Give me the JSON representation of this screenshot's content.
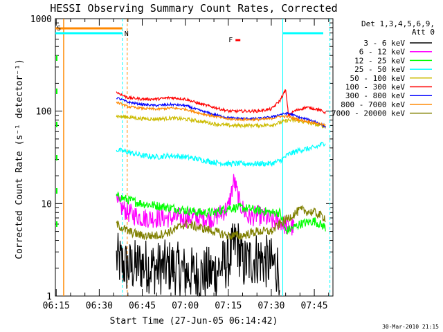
{
  "chart_data": {
    "type": "line",
    "title": "HESSI Observing Summary Count Rates, Corrected",
    "xlabel": "Start Time (27-Jun-05 06:14:42)",
    "ylabel": "Corrected Count Rate (s⁻¹ detector⁻¹)",
    "xlim": [
      "06:14:42",
      "07:51:30"
    ],
    "ylim": [
      1,
      1000
    ],
    "yscale": "log",
    "x_ticks": [
      "06:15",
      "06:30",
      "06:45",
      "07:00",
      "07:15",
      "07:30",
      "07:45"
    ],
    "y_ticks": [
      "1",
      "10",
      "100",
      "1000"
    ],
    "legend_header": [
      "Det 1,3,4,5,6,9,",
      "Att 0"
    ],
    "legend_placement": "right",
    "series": [
      {
        "name": "3 - 6 keV",
        "color": "#000000",
        "points": [
          [
            "06:36",
            2.5
          ],
          [
            "06:40",
            2.0
          ],
          [
            "06:45",
            2.2
          ],
          [
            "06:50",
            2.0
          ],
          [
            "06:55",
            2.1
          ],
          [
            "07:00",
            1.8
          ],
          [
            "07:05",
            1.7
          ],
          [
            "07:10",
            1.8
          ],
          [
            "07:15",
            2.4
          ],
          [
            "07:18",
            4.0
          ],
          [
            "07:20",
            2.2
          ],
          [
            "07:25",
            2.6
          ],
          [
            "07:30",
            2.2
          ],
          [
            "07:33",
            2.0
          ]
        ]
      },
      {
        "name": "6 - 12 keV",
        "color": "#ff00ff",
        "points": [
          [
            "06:36",
            10
          ],
          [
            "06:40",
            8
          ],
          [
            "06:45",
            7
          ],
          [
            "06:50",
            7
          ],
          [
            "06:55",
            7
          ],
          [
            "07:00",
            7
          ],
          [
            "07:05",
            7
          ],
          [
            "07:10",
            7
          ],
          [
            "07:15",
            9
          ],
          [
            "07:17",
            18
          ],
          [
            "07:19",
            10
          ],
          [
            "07:22",
            7
          ],
          [
            "07:25",
            7.5
          ],
          [
            "07:28",
            7
          ],
          [
            "07:30",
            6.5
          ],
          [
            "07:33",
            6.5
          ],
          [
            "07:36",
            5.5
          ],
          [
            "07:38",
            5.5
          ]
        ]
      },
      {
        "name": "12 - 25 keV",
        "color": "#00ff00",
        "points": [
          [
            "06:36",
            12
          ],
          [
            "06:40",
            11
          ],
          [
            "06:45",
            10
          ],
          [
            "06:50",
            9.5
          ],
          [
            "06:55",
            9
          ],
          [
            "07:00",
            8.5
          ],
          [
            "07:05",
            8
          ],
          [
            "07:10",
            8
          ],
          [
            "07:15",
            9
          ],
          [
            "07:20",
            9
          ],
          [
            "07:25",
            8.5
          ],
          [
            "07:30",
            8
          ],
          [
            "07:33",
            8
          ],
          [
            "07:35",
            5
          ],
          [
            "07:40",
            6
          ],
          [
            "07:45",
            6.5
          ],
          [
            "07:49",
            5.5
          ]
        ]
      },
      {
        "name": "25 - 50 keV",
        "color": "#00ffff",
        "points": [
          [
            "06:36",
            38
          ],
          [
            "06:40",
            36
          ],
          [
            "06:45",
            33
          ],
          [
            "06:50",
            32
          ],
          [
            "06:55",
            33
          ],
          [
            "07:00",
            32
          ],
          [
            "07:05",
            30
          ],
          [
            "07:10",
            28
          ],
          [
            "07:15",
            27
          ],
          [
            "07:20",
            27
          ],
          [
            "07:25",
            27
          ],
          [
            "07:30",
            27
          ],
          [
            "07:33",
            29
          ],
          [
            "07:36",
            34
          ],
          [
            "07:40",
            38
          ],
          [
            "07:45",
            40
          ],
          [
            "07:49",
            46
          ]
        ]
      },
      {
        "name": "50 - 100 keV",
        "color": "#ccbb00",
        "points": [
          [
            "06:36",
            88
          ],
          [
            "06:40",
            86
          ],
          [
            "06:45",
            83
          ],
          [
            "06:50",
            82
          ],
          [
            "06:55",
            84
          ],
          [
            "07:00",
            82
          ],
          [
            "07:05",
            78
          ],
          [
            "07:10",
            73
          ],
          [
            "07:15",
            70
          ],
          [
            "07:20",
            70
          ],
          [
            "07:25",
            70
          ],
          [
            "07:30",
            71
          ],
          [
            "07:33",
            75
          ],
          [
            "07:36",
            80
          ],
          [
            "07:40",
            78
          ],
          [
            "07:45",
            72
          ],
          [
            "07:49",
            68
          ]
        ]
      },
      {
        "name": "100 - 300 keV",
        "color": "#ff0000",
        "points": [
          [
            "06:36",
            160
          ],
          [
            "06:40",
            140
          ],
          [
            "06:45",
            135
          ],
          [
            "06:50",
            135
          ],
          [
            "06:55",
            140
          ],
          [
            "07:00",
            135
          ],
          [
            "07:05",
            120
          ],
          [
            "07:10",
            110
          ],
          [
            "07:15",
            100
          ],
          [
            "07:20",
            100
          ],
          [
            "07:25",
            100
          ],
          [
            "07:30",
            105
          ],
          [
            "07:33",
            130
          ],
          [
            "07:35",
            170
          ],
          [
            "07:36",
            90
          ],
          [
            "07:38",
            100
          ],
          [
            "07:42",
            110
          ],
          [
            "07:46",
            105
          ],
          [
            "07:49",
            96
          ]
        ]
      },
      {
        "name": "300 - 800 keV",
        "color": "#0000ff",
        "points": [
          [
            "06:36",
            140
          ],
          [
            "06:40",
            125
          ],
          [
            "06:45",
            118
          ],
          [
            "06:50",
            115
          ],
          [
            "06:55",
            118
          ],
          [
            "07:00",
            115
          ],
          [
            "07:05",
            102
          ],
          [
            "07:10",
            92
          ],
          [
            "07:15",
            85
          ],
          [
            "07:20",
            83
          ],
          [
            "07:25",
            83
          ],
          [
            "07:30",
            86
          ],
          [
            "07:33",
            92
          ],
          [
            "07:36",
            95
          ],
          [
            "07:40",
            85
          ],
          [
            "07:45",
            78
          ],
          [
            "07:49",
            68
          ]
        ]
      },
      {
        "name": "800 - 7000 keV",
        "color": "#ff8800",
        "points": [
          [
            "06:36",
            125
          ],
          [
            "06:40",
            112
          ],
          [
            "06:45",
            107
          ],
          [
            "06:50",
            105
          ],
          [
            "06:55",
            108
          ],
          [
            "07:00",
            105
          ],
          [
            "07:05",
            95
          ],
          [
            "07:10",
            88
          ],
          [
            "07:15",
            82
          ],
          [
            "07:20",
            81
          ],
          [
            "07:25",
            81
          ],
          [
            "07:30",
            83
          ],
          [
            "07:33",
            88
          ],
          [
            "07:36",
            87
          ],
          [
            "07:40",
            80
          ],
          [
            "07:45",
            75
          ],
          [
            "07:49",
            70
          ]
        ]
      },
      {
        "name": "7000 - 20000 keV",
        "color": "#808000",
        "points": [
          [
            "06:36",
            6
          ],
          [
            "06:40",
            5
          ],
          [
            "06:45",
            4.5
          ],
          [
            "06:50",
            4.5
          ],
          [
            "06:55",
            5
          ],
          [
            "07:00",
            6
          ],
          [
            "07:05",
            5.5
          ],
          [
            "07:10",
            5
          ],
          [
            "07:15",
            4.5
          ],
          [
            "07:20",
            4.5
          ],
          [
            "07:25",
            5
          ],
          [
            "07:30",
            5
          ],
          [
            "07:33",
            6
          ],
          [
            "07:36",
            7
          ],
          [
            "07:40",
            8.5
          ],
          [
            "07:45",
            8
          ],
          [
            "07:49",
            7
          ]
        ]
      }
    ],
    "annotations": [
      {
        "label": "S",
        "color": "#ff8800",
        "time": "06:14:42"
      },
      {
        "label": "N",
        "color": "#00ffff",
        "time": "06:33"
      },
      {
        "label": "F",
        "color": "#ff0000",
        "time": "07:18"
      }
    ],
    "footer": "30-Mar-2010 21:15"
  }
}
